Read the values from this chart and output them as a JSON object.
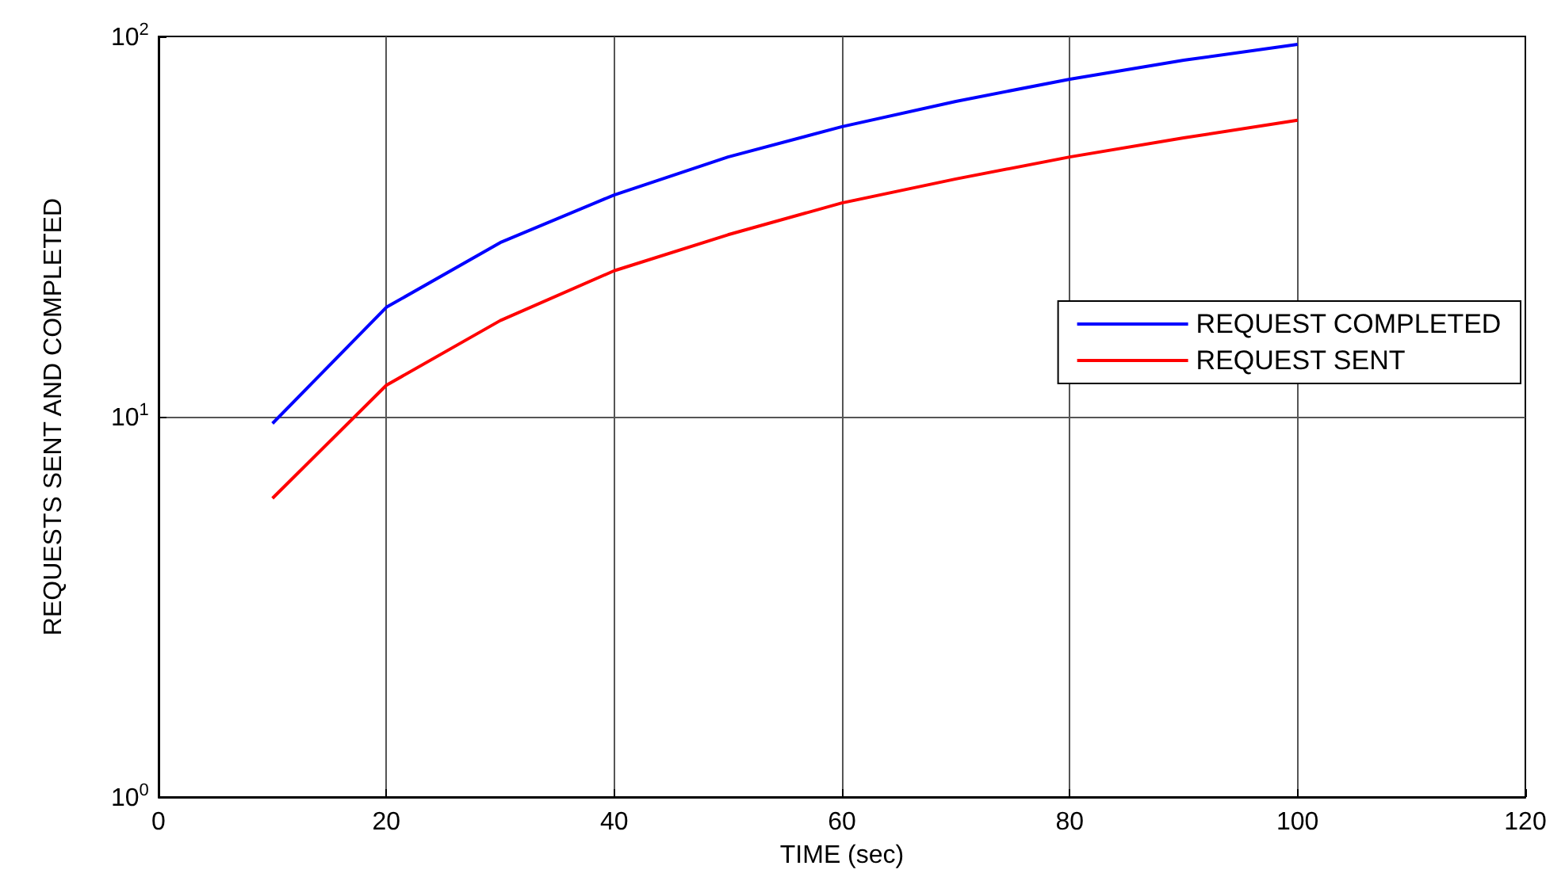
{
  "chart_data": {
    "type": "line",
    "xlabel": "TIME (sec)",
    "ylabel": "REQUESTS SENT AND COMPLETED",
    "x": [
      10,
      20,
      30,
      40,
      50,
      60,
      70,
      80,
      90,
      100
    ],
    "series": [
      {
        "name": "REQUEST COMPLETED",
        "color": "#0000ff",
        "values": [
          9.6,
          19.4,
          28.7,
          38.3,
          48.2,
          57.9,
          67.5,
          77.2,
          86.6,
          95.3
        ]
      },
      {
        "name": "REQUEST SENT",
        "color": "#ff0000",
        "values": [
          6.1,
          12.1,
          17.9,
          24.2,
          30.1,
          36.5,
          42.2,
          48.2,
          54.1,
          60.2
        ]
      }
    ],
    "xlim": [
      0,
      120
    ],
    "xticks": [
      0,
      20,
      40,
      60,
      80,
      100,
      120
    ],
    "ylim": [
      1,
      100
    ],
    "yticks": [
      {
        "value": 1,
        "label": "10$^{0}$"
      },
      {
        "value": 10,
        "label": "10$^{1}$"
      },
      {
        "value": 100,
        "label": "10$^{2}$"
      }
    ],
    "log": "y",
    "grid": true,
    "legend": "right",
    "marker": "none",
    "line_style": "solid"
  }
}
